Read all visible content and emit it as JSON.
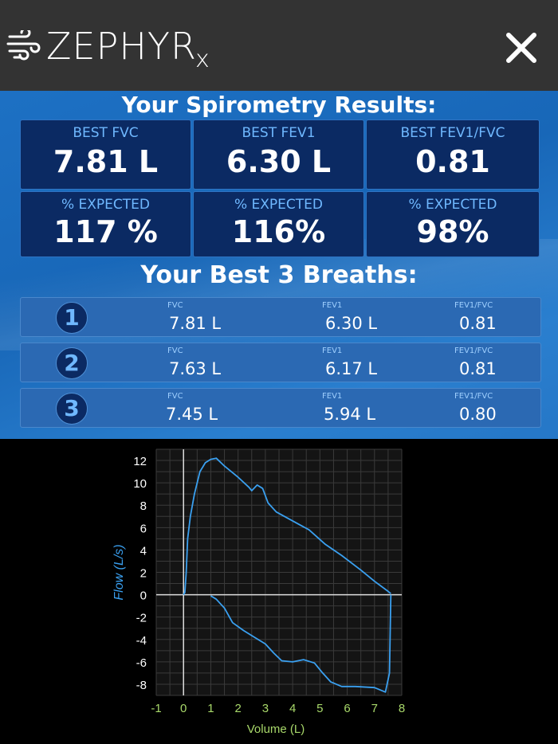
{
  "app": {
    "logo_text": "ZEPHYR",
    "logo_sub": "x",
    "logo_icon": "wind-icon",
    "close_icon": "close-icon"
  },
  "results": {
    "title": "Your Spirometry Results:",
    "cards": [
      {
        "label": "BEST FVC",
        "value": "7.81 L"
      },
      {
        "label": "BEST FEV1",
        "value": "6.30 L"
      },
      {
        "label": "BEST FEV1/FVC",
        "value": "0.81"
      },
      {
        "label": "% EXPECTED",
        "value": "117 %"
      },
      {
        "label": "% EXPECTED",
        "value": "116%"
      },
      {
        "label": "% EXPECTED",
        "value": "98%"
      }
    ]
  },
  "breaths": {
    "title": "Your Best 3 Breaths:",
    "col_labels": {
      "fvc": "FVC",
      "fev1": "FEV1",
      "ratio": "FEV1/FVC"
    },
    "rows": [
      {
        "num": "1",
        "fvc": "7.81  L",
        "fev1": "6.30  L",
        "ratio": "0.81"
      },
      {
        "num": "2",
        "fvc": "7.63  L",
        "fev1": "6.17  L",
        "ratio": "0.81"
      },
      {
        "num": "3",
        "fvc": "7.45  L",
        "fev1": "5.94  L",
        "ratio": "0.80"
      }
    ]
  },
  "chart_data": {
    "type": "line",
    "xlabel": "Volume (L)",
    "ylabel": "Flow (L/s)",
    "xlim": [
      -1,
      8
    ],
    "ylim": [
      -9,
      13
    ],
    "xticks": [
      -1,
      0,
      1,
      2,
      3,
      4,
      5,
      6,
      7,
      8
    ],
    "yticks": [
      12,
      10,
      8,
      6,
      4,
      2,
      0,
      -2,
      -4,
      -6,
      -8
    ],
    "grid": true,
    "colors": {
      "line": "#3aa0f0",
      "tick_x": "#a8d86a",
      "tick_y": "#ffffff",
      "axis_label": "#a8d86a"
    },
    "series": [
      {
        "values": [
          [
            0.0,
            0.0
          ],
          [
            0.05,
            0.2
          ],
          [
            0.1,
            2.0
          ],
          [
            0.15,
            5.0
          ],
          [
            0.25,
            7.0
          ],
          [
            0.4,
            9.0
          ],
          [
            0.6,
            11.0
          ],
          [
            0.8,
            11.8
          ],
          [
            1.0,
            12.1
          ],
          [
            1.2,
            12.2
          ],
          [
            1.5,
            11.5
          ],
          [
            2.0,
            10.5
          ],
          [
            2.4,
            9.6
          ],
          [
            2.5,
            9.3
          ],
          [
            2.7,
            9.8
          ],
          [
            2.9,
            9.5
          ],
          [
            3.1,
            8.2
          ],
          [
            3.4,
            7.4
          ],
          [
            4.0,
            6.6
          ],
          [
            4.6,
            5.8
          ],
          [
            5.2,
            4.5
          ],
          [
            5.8,
            3.5
          ],
          [
            6.5,
            2.2
          ],
          [
            7.0,
            1.2
          ],
          [
            7.5,
            0.3
          ],
          [
            7.6,
            0.1
          ]
        ]
      },
      {
        "values": [
          [
            1.0,
            -0.1
          ],
          [
            1.2,
            -0.4
          ],
          [
            1.35,
            -0.8
          ],
          [
            1.5,
            -1.2
          ],
          [
            1.8,
            -2.5
          ],
          [
            2.2,
            -3.2
          ],
          [
            2.6,
            -3.8
          ],
          [
            3.0,
            -4.4
          ],
          [
            3.3,
            -5.2
          ],
          [
            3.6,
            -5.9
          ],
          [
            4.0,
            -6.0
          ],
          [
            4.4,
            -5.8
          ],
          [
            4.8,
            -6.1
          ],
          [
            5.1,
            -7.0
          ],
          [
            5.4,
            -7.8
          ],
          [
            5.8,
            -8.2
          ],
          [
            6.3,
            -8.2
          ],
          [
            7.0,
            -8.3
          ],
          [
            7.4,
            -8.7
          ],
          [
            7.55,
            -7.0
          ],
          [
            7.6,
            0.0
          ]
        ]
      }
    ]
  }
}
